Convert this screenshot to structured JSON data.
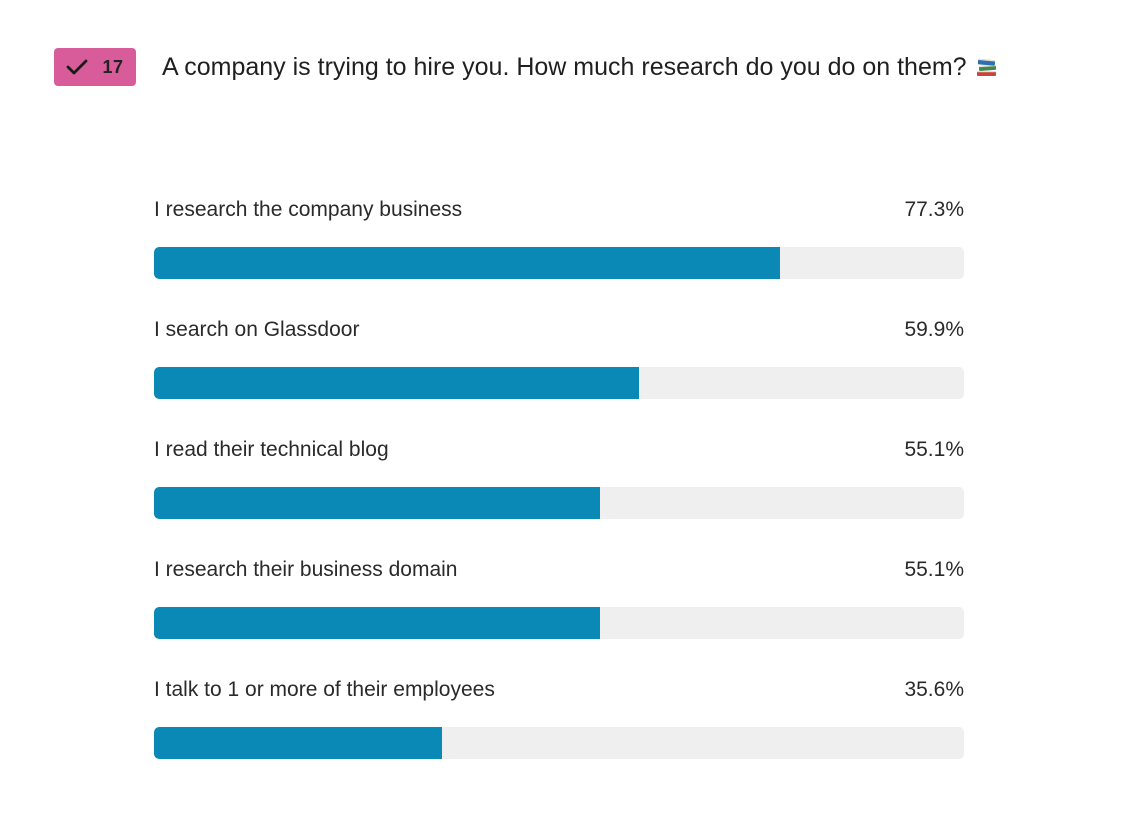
{
  "badge": {
    "count": "17",
    "color": "#d95c9a",
    "icon": "checkmark-icon"
  },
  "question": {
    "title": "A company is trying to hire you. How much research do you do on them?",
    "emoji_icon": "books-icon"
  },
  "colors": {
    "bar_fill": "#0a88b6",
    "bar_track": "#efefef"
  },
  "chart_data": {
    "type": "bar",
    "orientation": "horizontal",
    "title": "A company is trying to hire you. How much research do you do on them?",
    "categories": [
      "I research the company business",
      "I search on Glassdoor",
      "I read their technical blog",
      "I research their business domain",
      "I talk to 1 or more of their employees"
    ],
    "values": [
      77.3,
      59.9,
      55.1,
      55.1,
      35.6
    ],
    "value_labels": [
      "77.3%",
      "59.9%",
      "55.1%",
      "55.1%",
      "35.6%"
    ],
    "xlim": [
      0,
      100
    ],
    "unit": "%",
    "grid": false,
    "legend": "none"
  }
}
